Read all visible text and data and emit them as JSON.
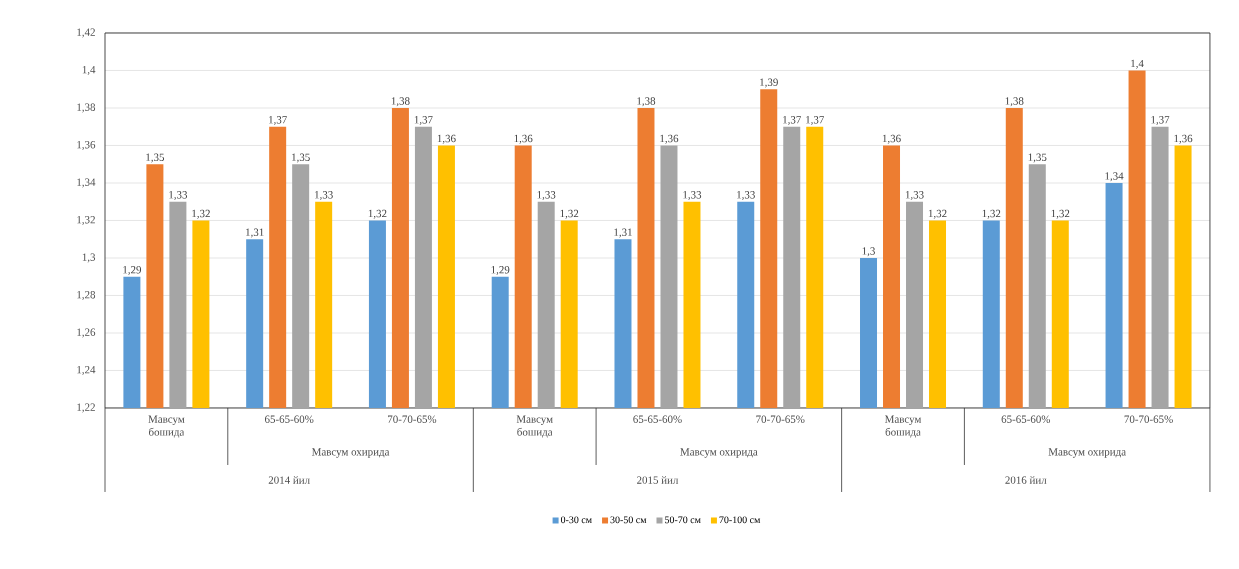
{
  "chart_data": {
    "type": "bar",
    "categories": [
      "Мавсум бошида",
      "65-65-60%",
      "70-70-65%",
      "Мавсум бошида",
      "65-65-60%",
      "70-70-65%",
      "Мавсум бошида",
      "65-65-60%",
      "70-70-65%"
    ],
    "series": [
      {
        "name": "0-30 см",
        "color": "#5b9bd5",
        "values": [
          1.29,
          1.31,
          1.32,
          1.29,
          1.31,
          1.33,
          1.3,
          1.32,
          1.34
        ],
        "value_labels": [
          "1,29",
          "1,31",
          "1,32",
          "1,29",
          "1,31",
          "1,33",
          "1,3",
          "1,32",
          "1,34"
        ]
      },
      {
        "name": "30-50 см",
        "color": "#ed7d31",
        "values": [
          1.35,
          1.37,
          1.38,
          1.36,
          1.38,
          1.39,
          1.36,
          1.38,
          1.4
        ],
        "value_labels": [
          "1,35",
          "1,37",
          "1,38",
          "1,36",
          "1,38",
          "1,39",
          "1,36",
          "1,38",
          "1,4"
        ]
      },
      {
        "name": "50-70 см",
        "color": "#a5a5a5",
        "values": [
          1.33,
          1.35,
          1.37,
          1.33,
          1.36,
          1.37,
          1.33,
          1.35,
          1.37
        ],
        "value_labels": [
          "1,33",
          "1,35",
          "1,37",
          "1,33",
          "1,36",
          "1,37",
          "1,33",
          "1,35",
          "1,37"
        ]
      },
      {
        "name": "70-100 см",
        "color": "#ffc000",
        "values": [
          1.32,
          1.33,
          1.36,
          1.32,
          1.33,
          1.37,
          1.32,
          1.32,
          1.36
        ],
        "value_labels": [
          "1,32",
          "1,33",
          "1,36",
          "1,32",
          "1,33",
          "1,37",
          "1,32",
          "1,32",
          "1,36"
        ]
      }
    ],
    "ylim": [
      1.22,
      1.42
    ],
    "yticks": [
      {
        "value": 1.22,
        "label": "1,22"
      },
      {
        "value": 1.24,
        "label": "1,24"
      },
      {
        "value": 1.26,
        "label": "1,26"
      },
      {
        "value": 1.28,
        "label": "1,28"
      },
      {
        "value": 1.3,
        "label": "1,3"
      },
      {
        "value": 1.32,
        "label": "1,32"
      },
      {
        "value": 1.34,
        "label": "1,34"
      },
      {
        "value": 1.36,
        "label": "1,36"
      },
      {
        "value": 1.38,
        "label": "1,38"
      },
      {
        "value": 1.4,
        "label": "1,4"
      },
      {
        "value": 1.42,
        "label": "1,42"
      }
    ],
    "grid": "y",
    "legend": "bottom",
    "annotations": [
      "Мавсум охирида",
      "2014 йил",
      "Мавсум охирида",
      "2015 йил",
      "Мавсум охирида",
      "2016 йил"
    ]
  }
}
